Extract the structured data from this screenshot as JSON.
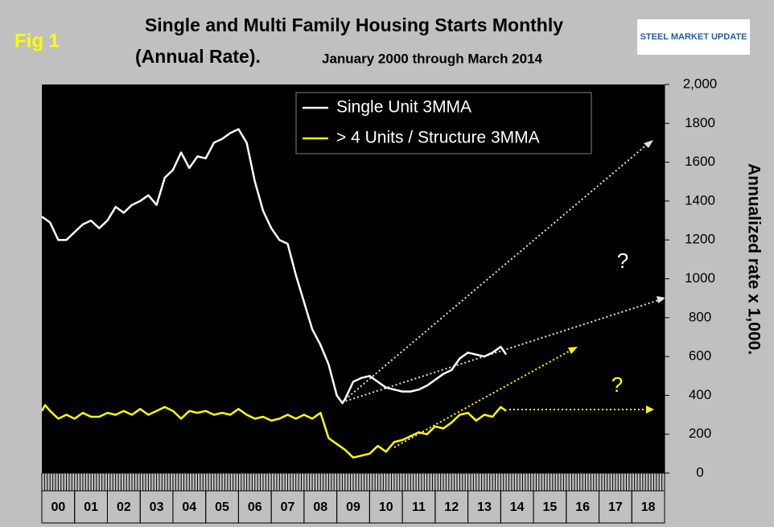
{
  "chart_data": {
    "type": "line",
    "fig_label": "Fig 1",
    "title": "Single and Multi Family Housing Starts Monthly",
    "title_line2": "(Annual Rate).",
    "subtitle": "January 2000 through March 2014",
    "logo": "STEEL MARKET UPDATE",
    "y_axis_label": "Annualized rate x 1,000.",
    "annotations": [
      "?",
      "?"
    ],
    "xlim": [
      2000,
      2019
    ],
    "xticks": [
      {
        "value": 2000.5,
        "label": "00"
      },
      {
        "value": 2001.5,
        "label": "01"
      },
      {
        "value": 2002.5,
        "label": "02"
      },
      {
        "value": 2003.5,
        "label": "03"
      },
      {
        "value": 2004.5,
        "label": "04"
      },
      {
        "value": 2005.5,
        "label": "05"
      },
      {
        "value": 2006.5,
        "label": "06"
      },
      {
        "value": 2007.5,
        "label": "07"
      },
      {
        "value": 2008.5,
        "label": "08"
      },
      {
        "value": 2009.5,
        "label": "09"
      },
      {
        "value": 2010.5,
        "label": "10"
      },
      {
        "value": 2011.5,
        "label": "11"
      },
      {
        "value": 2012.5,
        "label": "12"
      },
      {
        "value": 2013.5,
        "label": "13"
      },
      {
        "value": 2014.5,
        "label": "14"
      },
      {
        "value": 2015.5,
        "label": "15"
      },
      {
        "value": 2016.5,
        "label": "16"
      },
      {
        "value": 2017.5,
        "label": "17"
      },
      {
        "value": 2018.5,
        "label": "18"
      }
    ],
    "ylim": [
      0,
      2000
    ],
    "yticks": [
      0,
      200,
      400,
      600,
      800,
      1000,
      1200,
      1400,
      1600,
      1800,
      {
        "value": 2000,
        "label": "2,000"
      }
    ],
    "yticks_fix": null,
    "series": [
      {
        "name": "Single Unit 3MMA",
        "color": "#ffffff",
        "x": [
          2000.0,
          2000.25,
          2000.5,
          2000.75,
          2001.0,
          2001.25,
          2001.5,
          2001.75,
          2002.0,
          2002.25,
          2002.5,
          2002.75,
          2003.0,
          2003.25,
          2003.5,
          2003.75,
          2004.0,
          2004.25,
          2004.5,
          2004.75,
          2005.0,
          2005.25,
          2005.5,
          2005.75,
          2006.0,
          2006.25,
          2006.5,
          2006.75,
          2007.0,
          2007.25,
          2007.5,
          2007.75,
          2008.0,
          2008.25,
          2008.5,
          2008.75,
          2009.0,
          2009.17,
          2009.25,
          2009.5,
          2009.75,
          2010.0,
          2010.25,
          2010.5,
          2010.75,
          2011.0,
          2011.25,
          2011.5,
          2011.75,
          2012.0,
          2012.25,
          2012.5,
          2012.75,
          2013.0,
          2013.25,
          2013.5,
          2013.75,
          2014.0,
          2014.17
        ],
        "values": [
          1320,
          1290,
          1200,
          1200,
          1240,
          1280,
          1300,
          1260,
          1300,
          1370,
          1340,
          1380,
          1400,
          1430,
          1380,
          1520,
          1560,
          1650,
          1570,
          1630,
          1620,
          1700,
          1720,
          1750,
          1770,
          1700,
          1500,
          1350,
          1260,
          1200,
          1180,
          1020,
          880,
          740,
          660,
          560,
          400,
          360,
          380,
          470,
          490,
          500,
          470,
          440,
          430,
          420,
          420,
          430,
          450,
          480,
          510,
          530,
          590,
          620,
          610,
          600,
          620,
          650,
          610
        ]
      },
      {
        "name": "> 4 Units / Structure 3MMA",
        "color": "#ffff00",
        "x": [
          2000.0,
          2000.1,
          2000.25,
          2000.5,
          2000.75,
          2001.0,
          2001.25,
          2001.5,
          2001.75,
          2002.0,
          2002.25,
          2002.5,
          2002.75,
          2003.0,
          2003.25,
          2003.5,
          2003.75,
          2004.0,
          2004.25,
          2004.5,
          2004.75,
          2005.0,
          2005.25,
          2005.5,
          2005.75,
          2006.0,
          2006.25,
          2006.5,
          2006.75,
          2007.0,
          2007.25,
          2007.5,
          2007.75,
          2008.0,
          2008.25,
          2008.5,
          2008.6,
          2008.75,
          2009.0,
          2009.25,
          2009.5,
          2009.75,
          2010.0,
          2010.25,
          2010.5,
          2010.75,
          2011.0,
          2011.25,
          2011.5,
          2011.75,
          2012.0,
          2012.25,
          2012.5,
          2012.75,
          2013.0,
          2013.25,
          2013.5,
          2013.75,
          2014.0,
          2014.17
        ],
        "values": [
          320,
          350,
          320,
          280,
          300,
          280,
          310,
          290,
          290,
          310,
          300,
          320,
          300,
          330,
          300,
          320,
          340,
          320,
          280,
          320,
          310,
          320,
          300,
          310,
          300,
          330,
          300,
          280,
          290,
          270,
          280,
          300,
          280,
          300,
          280,
          310,
          260,
          180,
          150,
          120,
          80,
          90,
          100,
          140,
          110,
          160,
          170,
          190,
          210,
          200,
          240,
          230,
          260,
          300,
          310,
          270,
          300,
          290,
          340,
          320
        ]
      }
    ]
  }
}
